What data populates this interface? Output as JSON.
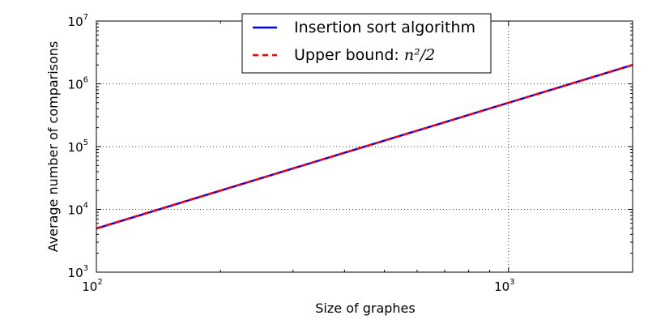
{
  "chart_data": {
    "type": "line",
    "x_scale": "log",
    "y_scale": "log",
    "xlim": [
      100,
      2000
    ],
    "ylim": [
      1000,
      10000000
    ],
    "xlabel": "Size of graphes",
    "ylabel": "Average number of comparisons",
    "grid": true,
    "legend_position": "top-center",
    "x_ticks": [
      {
        "base": "10",
        "exp": "2",
        "value": 100
      },
      {
        "base": "10",
        "exp": "3",
        "value": 1000
      }
    ],
    "y_ticks": [
      {
        "base": "10",
        "exp": "3",
        "value": 1000
      },
      {
        "base": "10",
        "exp": "4",
        "value": 10000
      },
      {
        "base": "10",
        "exp": "5",
        "value": 100000
      },
      {
        "base": "10",
        "exp": "6",
        "value": 1000000
      },
      {
        "base": "10",
        "exp": "7",
        "value": 10000000
      }
    ],
    "x": [
      100,
      150,
      200,
      300,
      400,
      500,
      700,
      1000,
      1500,
      2000
    ],
    "series": [
      {
        "name": "Insertion sort algorithm",
        "color": "#0000ff",
        "style": "solid",
        "values": [
          4950,
          11175,
          19900,
          44850,
          79800,
          124750,
          244650,
          499500,
          1124250,
          1999000
        ]
      },
      {
        "name_prefix": "Upper bound: ",
        "name_math": "n²/2",
        "color": "#ff0000",
        "style": "dashed",
        "values": [
          5000,
          11250,
          20000,
          45000,
          80000,
          125000,
          245000,
          500000,
          1125000,
          2000000
        ]
      }
    ]
  }
}
